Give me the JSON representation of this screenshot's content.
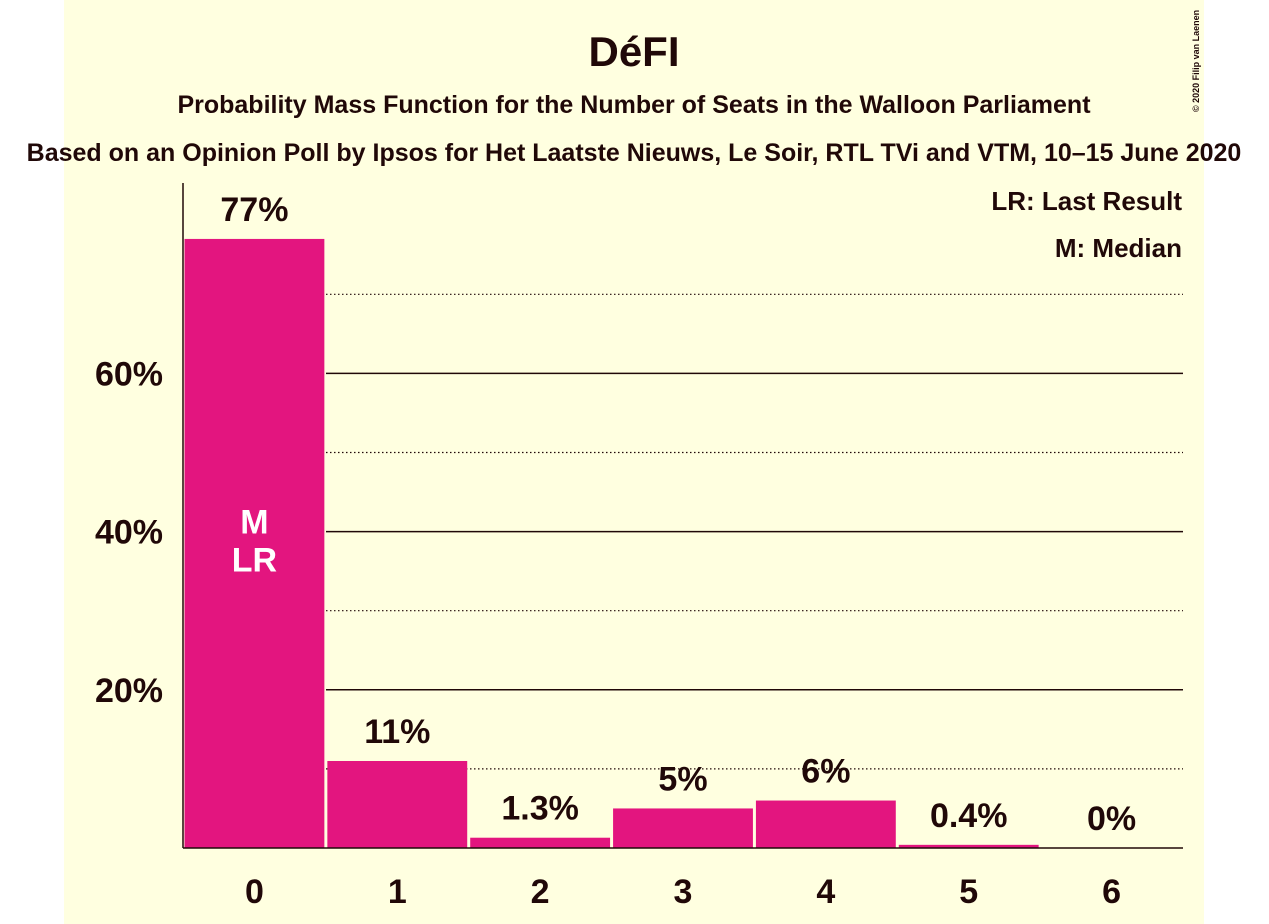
{
  "colors": {
    "background": "#ffffe0",
    "bar": "#e3157f",
    "text": "#200808"
  },
  "copyright": "© 2020 Filip van Laenen",
  "chart_data": {
    "type": "bar",
    "title": "DéFI",
    "subtitle": "Probability Mass Function for the Number of Seats in the Walloon Parliament",
    "source": "Based on an Opinion Poll by Ipsos for Het Laatste Nieuws, Le Soir, RTL TVi and VTM, 10–15 June 2020",
    "categories": [
      "0",
      "1",
      "2",
      "3",
      "4",
      "5",
      "6"
    ],
    "values": [
      77,
      11,
      1.3,
      5,
      6,
      0.4,
      0
    ],
    "value_labels": [
      "77%",
      "11%",
      "1.3%",
      "5%",
      "6%",
      "0.4%",
      "0%"
    ],
    "ylim": [
      0,
      84
    ],
    "yticks": [
      20,
      40,
      60
    ],
    "ytick_labels": [
      "20%",
      "40%",
      "60%"
    ],
    "minor_gridlines": [
      10,
      30,
      50,
      70
    ],
    "grid": true,
    "bar_annotations": [
      {
        "category": "0",
        "lines": [
          "M",
          "LR"
        ]
      }
    ],
    "legend": [
      "LR: Last Result",
      "M: Median"
    ],
    "legend_position": "top-right"
  }
}
